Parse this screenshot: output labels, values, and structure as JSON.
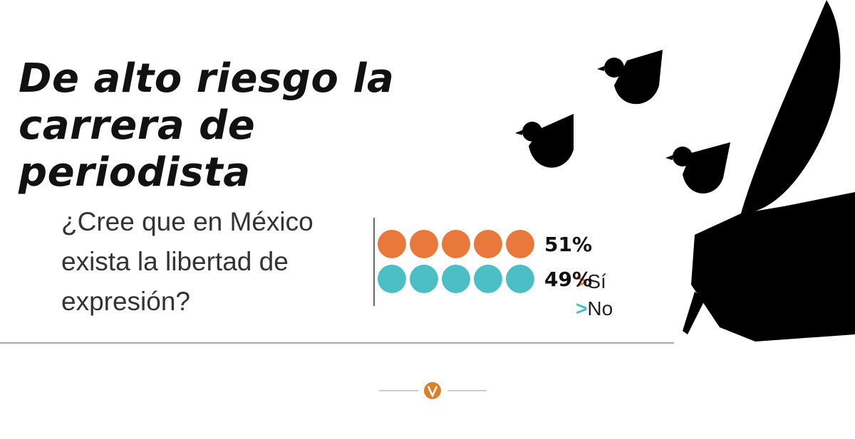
{
  "chart_data": {
    "type": "pictogram",
    "title": "De alto riesgo la carrera de periodista",
    "subtitle": "¿Cree que en México exista la libertad de expresión?",
    "legend_marker": ">",
    "series": [
      {
        "name": "Sí",
        "color": "#e8793a",
        "values": [
          51
        ],
        "value_labels": [
          "51%"
        ]
      },
      {
        "name": "No",
        "color": "#4bbec6",
        "values": [
          49
        ],
        "value_labels": [
          "49%"
        ]
      }
    ]
  }
}
